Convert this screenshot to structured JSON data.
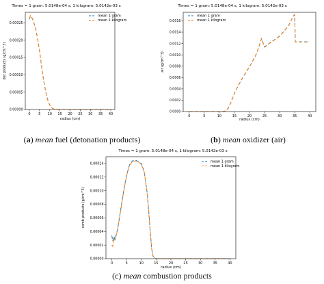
{
  "captions": [
    {
      "label": "a",
      "emph": "mean",
      "rest": "fuel (detonation products)"
    },
    {
      "label": "b",
      "emph": "mean",
      "rest": "oxidizer (air)"
    },
    {
      "label": "c",
      "emph": "mean",
      "rest": "combustion products"
    }
  ],
  "colors": {
    "series_1": "#1f77b4",
    "series_2": "#ff7f0e",
    "axis": "#000000"
  },
  "chart_data": [
    {
      "type": "line",
      "title": "Times = 1 gram:   5.0148e-04 s,   1 kilogram:   5.0142e-03 s",
      "xlabel": "radius (cm)",
      "ylabel": "det products (g/cm^3)",
      "xlim": [
        -2,
        42
      ],
      "ylim": [
        0,
        0.00028
      ],
      "xticks": [
        0,
        5,
        10,
        15,
        20,
        25,
        30,
        35,
        40
      ],
      "yticks": [
        0,
        5e-05,
        0.0001,
        0.00015,
        0.0002,
        0.00025
      ],
      "ytick_labels": [
        "0.00000",
        "0.00005",
        "0.00010",
        "0.00015",
        "0.00020",
        "0.00025"
      ],
      "legend": "top-right",
      "series": [
        {
          "name": "mean 1 gram",
          "x": [
            0,
            0.5,
            1,
            2,
            3,
            4,
            5,
            6,
            7,
            8,
            9,
            10,
            11,
            12,
            13,
            14,
            15,
            40
          ],
          "y": [
            0.00026,
            0.00027,
            0.000268,
            0.000255,
            0.000235,
            0.000205,
            0.00017,
            0.000125,
            8.5e-05,
            5.2e-05,
            2.8e-05,
            1.3e-05,
            5e-06,
            1.5e-06,
            3e-07,
            0,
            0,
            0
          ]
        },
        {
          "name": "mean 1 kilogram",
          "x": [
            0,
            0.5,
            1,
            2,
            3,
            4,
            5,
            6,
            7,
            8,
            9,
            10,
            11,
            12,
            13,
            14,
            15,
            40
          ],
          "y": [
            0.000262,
            0.000271,
            0.000267,
            0.000254,
            0.000234,
            0.000204,
            0.000169,
            0.000124,
            8.4e-05,
            5.1e-05,
            2.7e-05,
            1.25e-05,
            4.8e-06,
            1.4e-06,
            3e-07,
            0,
            0,
            0
          ]
        }
      ]
    },
    {
      "type": "line",
      "title": "Times = 1 gram:   5.0148e-04 s,   1 kilogram:   5.0142e-03 s",
      "xlabel": "radius (cm)",
      "ylabel": "air (g/cm^3)",
      "xlim": [
        -2,
        42
      ],
      "ylim": [
        0,
        0.00175
      ],
      "xticks": [
        0,
        5,
        10,
        15,
        20,
        25,
        30,
        35,
        40
      ],
      "yticks": [
        0,
        0.0002,
        0.0004,
        0.0006,
        0.0008,
        0.001,
        0.0012,
        0.0014,
        0.0016
      ],
      "ytick_labels": [
        "0.0000",
        "0.0002",
        "0.0004",
        "0.0006",
        "0.0008",
        "0.0010",
        "0.0012",
        "0.0014",
        "0.0016"
      ],
      "legend": "top-left",
      "series": [
        {
          "name": "mean 1 gram",
          "x": [
            0,
            11,
            12,
            13,
            14,
            15,
            16,
            18,
            20,
            22,
            23,
            24,
            25,
            27,
            30,
            33,
            34.5,
            35,
            35.2,
            40
          ],
          "y": [
            0,
            0,
            1e-05,
            6e-05,
            0.00018,
            0.00032,
            0.00043,
            0.00062,
            0.00079,
            0.00098,
            0.00112,
            0.00129,
            0.00114,
            0.00122,
            0.00133,
            0.00152,
            0.00168,
            0.00171,
            0.00123,
            0.00123
          ]
        },
        {
          "name": "mean 1 kilogram",
          "x": [
            0,
            11,
            12,
            13,
            14,
            15,
            16,
            18,
            20,
            22,
            23,
            24,
            25,
            27,
            30,
            33,
            34.5,
            35,
            35.2,
            40
          ],
          "y": [
            0,
            0,
            1.2e-05,
            6.5e-05,
            0.000185,
            0.000325,
            0.000435,
            0.000625,
            0.000795,
            0.000985,
            0.001125,
            0.001285,
            0.001135,
            0.001215,
            0.001325,
            0.001515,
            0.001675,
            0.001705,
            0.001225,
            0.001225
          ]
        }
      ]
    },
    {
      "type": "line",
      "title": "Times = 1 gram:   5.0148e-04 s,   1 kilogram:   5.0142e-03 s",
      "xlabel": "radius (cm)",
      "ylabel": "comb products (g/cm^3)",
      "xlim": [
        -2,
        42
      ],
      "ylim": [
        0,
        0.00015
      ],
      "xticks": [
        0,
        5,
        10,
        15,
        20,
        25,
        30,
        35,
        40
      ],
      "yticks": [
        0,
        2e-05,
        4e-05,
        6e-05,
        8e-05,
        0.0001,
        0.00012,
        0.00014
      ],
      "ytick_labels": [
        "0.00000",
        "0.00002",
        "0.00004",
        "0.00006",
        "0.00008",
        "0.00010",
        "0.00012",
        "0.00014"
      ],
      "legend": "top-right",
      "series": [
        {
          "name": "mean 1 gram",
          "x": [
            0,
            0.3,
            0.7,
            1,
            1.5,
            2,
            3,
            4,
            5,
            6,
            7,
            8,
            9,
            10,
            11,
            12,
            12.5,
            13,
            13.5,
            14,
            15,
            40
          ],
          "y": [
            3.4e-05,
            2.6e-05,
            3.3e-05,
            2.8e-05,
            3.5e-05,
            4.5e-05,
            7.2e-05,
            0.0001,
            0.000123,
            0.000138,
            0.000144,
            0.000145,
            0.000143,
            0.00014,
            0.000128,
            9.5e-05,
            7e-05,
            4e-05,
            1.5e-05,
            3e-06,
            0,
            0
          ]
        },
        {
          "name": "mean 1 kilogram",
          "x": [
            0,
            0.3,
            0.7,
            1,
            1.5,
            2,
            3,
            4,
            5,
            6,
            7,
            8,
            9,
            10,
            11,
            12,
            12.5,
            13,
            13.5,
            14,
            15,
            40
          ],
          "y": [
            2e-05,
            1.8e-05,
            2.8e-05,
            2.6e-05,
            3.4e-05,
            4.4e-05,
            7.1e-05,
            9.9e-05,
            0.000122,
            0.000137,
            0.000143,
            0.000144,
            0.000142,
            0.000139,
            0.000127,
            9.4e-05,
            6.9e-05,
            3.9e-05,
            1.4e-05,
            2.8e-06,
            0,
            0
          ]
        }
      ]
    }
  ]
}
